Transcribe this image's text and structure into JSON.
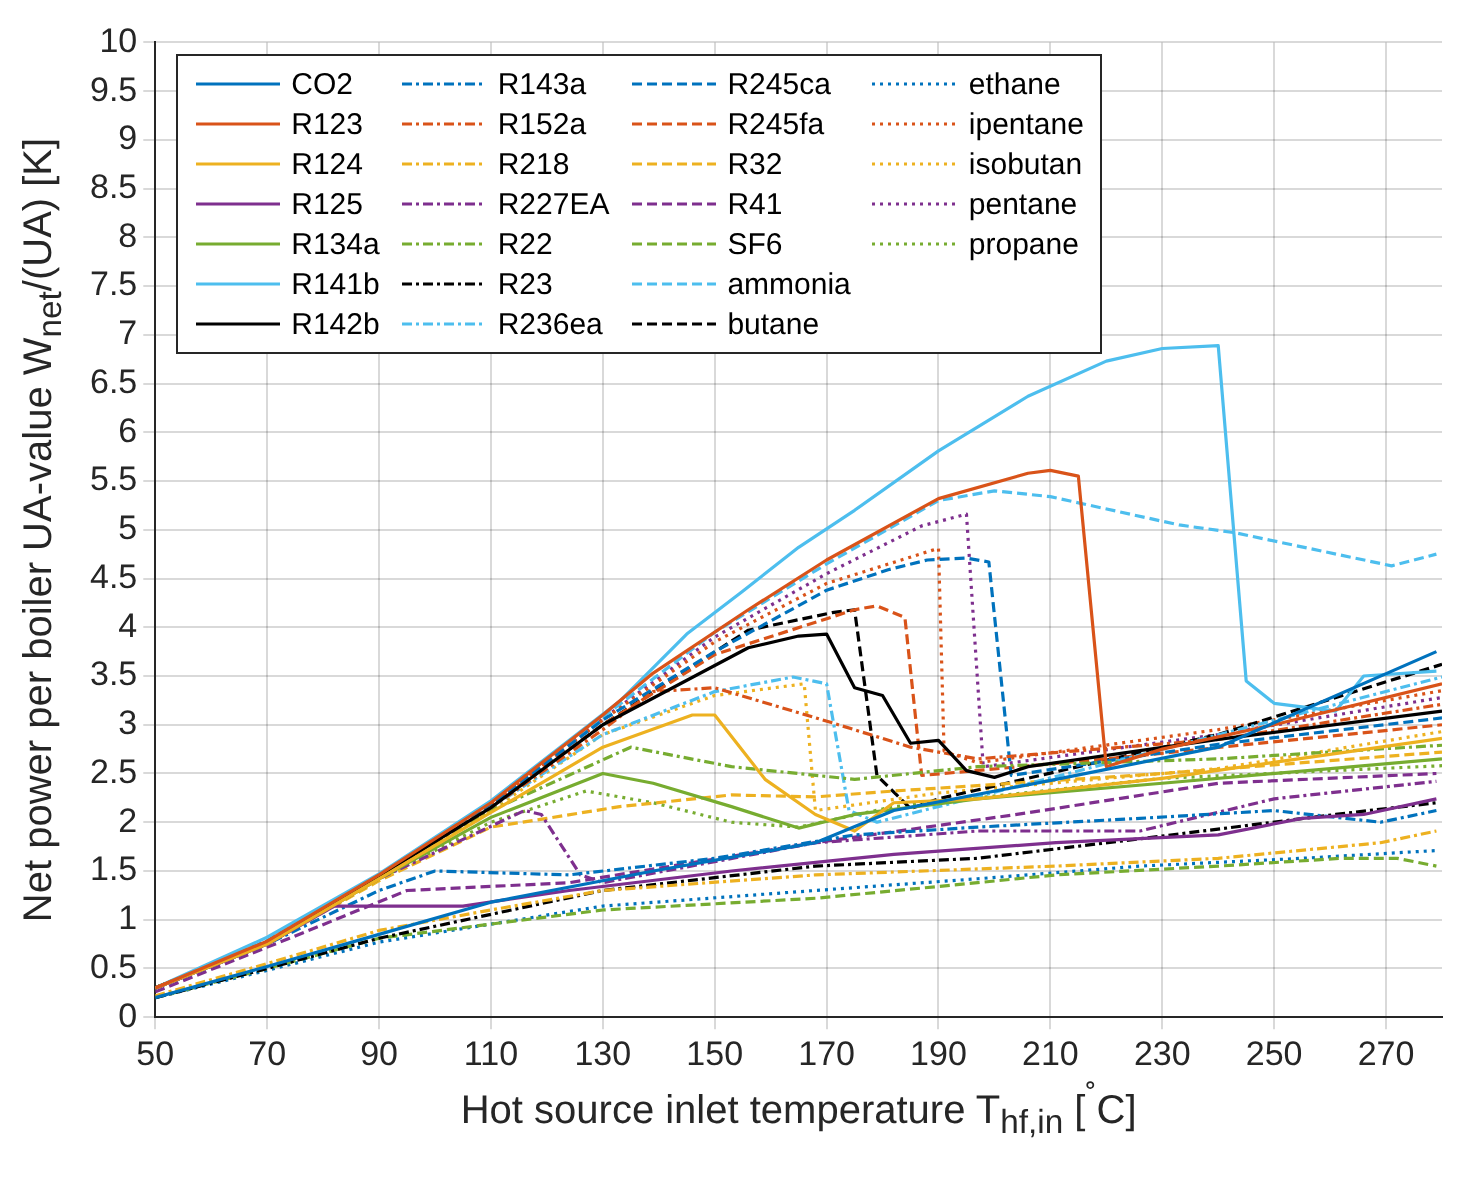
{
  "chart_data": {
    "type": "line",
    "xlabel": "Hot source inlet temperature T$_{hf,in}$ [$^{˚}$C]",
    "ylabel": "Net power per boiler UA-value W$_{net}$/(UA) [K]",
    "xlim": [
      50,
      280
    ],
    "xticks": [
      50,
      70,
      90,
      110,
      130,
      150,
      170,
      190,
      210,
      230,
      250,
      270
    ],
    "ylim": [
      0,
      10
    ],
    "yticks": [
      0,
      0.5,
      1,
      1.5,
      2,
      2.5,
      3,
      3.5,
      4,
      4.5,
      5,
      5.5,
      6,
      6.5,
      7,
      7.5,
      8,
      8.5,
      9,
      9.5,
      10
    ],
    "grid": true,
    "legend": "top left",
    "marker": "none",
    "series": [
      {
        "name": "CO2",
        "color": "#0072bd",
        "line_style": "solid",
        "x": [
          50,
          70,
          90,
          110,
          139,
          168,
          182,
          211,
          240,
          279
        ],
        "values": [
          0.2,
          0.52,
          0.85,
          1.18,
          1.5,
          1.79,
          2.12,
          2.44,
          2.77,
          3.75
        ]
      },
      {
        "name": "R123",
        "color": "#d95319",
        "line_style": "solid",
        "x": [
          50,
          70,
          90,
          110,
          130,
          139,
          156,
          170,
          190,
          206,
          210,
          215,
          220,
          230,
          250,
          280
        ],
        "values": [
          0.3,
          0.78,
          1.46,
          2.2,
          3.1,
          3.53,
          4.18,
          4.69,
          5.32,
          5.58,
          5.61,
          5.55,
          2.57,
          2.75,
          3.0,
          3.42
        ]
      },
      {
        "name": "R124",
        "color": "#edb120",
        "line_style": "solid",
        "x": [
          50,
          70,
          90,
          110,
          130,
          146,
          150,
          159,
          168,
          175,
          182,
          197,
          230,
          280
        ],
        "values": [
          0.3,
          0.75,
          1.42,
          2.1,
          2.77,
          3.1,
          3.1,
          2.44,
          2.08,
          1.91,
          2.2,
          2.24,
          2.45,
          2.86
        ]
      },
      {
        "name": "R125",
        "color": "#7e2f8e",
        "line_style": "solid",
        "x": [
          50,
          70,
          82,
          90,
          105,
          124,
          153,
          182,
          211,
          240,
          255,
          266,
          279
        ],
        "values": [
          0.3,
          0.75,
          1.14,
          1.14,
          1.14,
          1.3,
          1.5,
          1.67,
          1.79,
          1.87,
          2.04,
          2.08,
          2.24
        ]
      },
      {
        "name": "R134a",
        "color": "#77ac30",
        "line_style": "solid",
        "x": [
          50,
          70,
          90,
          110,
          130,
          139,
          153,
          165,
          175,
          197,
          230,
          280
        ],
        "values": [
          0.3,
          0.75,
          1.42,
          2.05,
          2.5,
          2.4,
          2.16,
          1.94,
          2.08,
          2.24,
          2.4,
          2.65
        ]
      },
      {
        "name": "R141b",
        "color": "#4dbeee",
        "line_style": "solid",
        "x": [
          50,
          70,
          90,
          110,
          133,
          145,
          155,
          165,
          175,
          190,
          206,
          220,
          230,
          240,
          245,
          250,
          261,
          266,
          279
        ],
        "values": [
          0.3,
          0.82,
          1.47,
          2.22,
          3.24,
          3.93,
          4.37,
          4.82,
          5.2,
          5.81,
          6.37,
          6.73,
          6.86,
          6.89,
          3.45,
          3.22,
          3.14,
          3.5,
          3.55
        ]
      },
      {
        "name": "R142b",
        "color": "#000000",
        "line_style": "solid",
        "x": [
          50,
          70,
          90,
          110,
          130,
          156,
          165,
          170,
          175,
          180,
          185,
          190,
          195,
          200,
          206,
          240,
          280
        ],
        "values": [
          0.3,
          0.76,
          1.45,
          2.15,
          3.0,
          3.79,
          3.91,
          3.93,
          3.38,
          3.3,
          2.81,
          2.84,
          2.53,
          2.46,
          2.57,
          2.85,
          3.14
        ]
      },
      {
        "name": "R143a",
        "color": "#0072bd",
        "line_style": "dashdot",
        "x": [
          50,
          70,
          90,
          100,
          124,
          150,
          175,
          197,
          226,
          250,
          269,
          279
        ],
        "values": [
          0.3,
          0.75,
          1.3,
          1.5,
          1.46,
          1.63,
          1.87,
          1.95,
          2.04,
          2.12,
          2.0,
          2.12
        ]
      },
      {
        "name": "R152a",
        "color": "#d95319",
        "line_style": "dashdot",
        "x": [
          50,
          70,
          90,
          110,
          130,
          139,
          150,
          171,
          185,
          197,
          240,
          280
        ],
        "values": [
          0.3,
          0.76,
          1.45,
          2.15,
          2.95,
          3.34,
          3.38,
          3.02,
          2.77,
          2.65,
          2.85,
          3.21
        ]
      },
      {
        "name": "R218",
        "color": "#edb120",
        "line_style": "dashdot",
        "x": [
          50,
          70,
          90,
          110,
          130,
          168,
          211,
          240,
          269,
          279
        ],
        "values": [
          0.22,
          0.55,
          0.89,
          1.1,
          1.3,
          1.46,
          1.55,
          1.63,
          1.79,
          1.91
        ]
      },
      {
        "name": "R227EA",
        "color": "#7e2f8e",
        "line_style": "dashdot",
        "x": [
          50,
          70,
          90,
          116,
          119,
          126,
          130,
          168,
          197,
          226,
          250,
          279
        ],
        "values": [
          0.3,
          0.75,
          1.42,
          2.12,
          2.08,
          1.46,
          1.38,
          1.79,
          1.91,
          1.91,
          2.24,
          2.42
        ]
      },
      {
        "name": "R22",
        "color": "#77ac30",
        "line_style": "dashdot",
        "x": [
          50,
          70,
          90,
          110,
          135,
          153,
          175,
          197,
          240,
          280
        ],
        "values": [
          0.3,
          0.76,
          1.45,
          2.12,
          2.77,
          2.57,
          2.44,
          2.57,
          2.65,
          2.79
        ]
      },
      {
        "name": "R23",
        "color": "#000000",
        "line_style": "dashdot",
        "x": [
          50,
          70,
          90,
          130,
          168,
          197,
          226,
          261,
          279
        ],
        "values": [
          0.2,
          0.5,
          0.81,
          1.3,
          1.55,
          1.63,
          1.83,
          2.08,
          2.2
        ]
      },
      {
        "name": "R236ea",
        "color": "#4dbeee",
        "line_style": "dashdot",
        "x": [
          50,
          70,
          90,
          110,
          130,
          150,
          164,
          170,
          174,
          179,
          220,
          280
        ],
        "values": [
          0.3,
          0.76,
          1.45,
          2.15,
          2.9,
          3.34,
          3.49,
          3.42,
          2.12,
          2.0,
          2.6,
          3.49
        ]
      },
      {
        "name": "R245ca",
        "color": "#0072bd",
        "line_style": "dashed",
        "x": [
          50,
          70,
          90,
          110,
          130,
          150,
          170,
          181,
          188,
          195,
          199,
          203,
          240,
          280
        ],
        "values": [
          0.3,
          0.78,
          1.46,
          2.18,
          3.05,
          3.75,
          4.38,
          4.59,
          4.69,
          4.71,
          4.67,
          2.48,
          2.8,
          3.07
        ]
      },
      {
        "name": "R245fa",
        "color": "#d95319",
        "line_style": "dashed",
        "x": [
          50,
          70,
          90,
          110,
          130,
          150,
          175,
          179,
          184,
          187,
          220,
          280
        ],
        "values": [
          0.3,
          0.77,
          1.45,
          2.16,
          3.0,
          3.72,
          4.18,
          4.22,
          4.1,
          2.48,
          2.65,
          3.0
        ]
      },
      {
        "name": "R32",
        "color": "#edb120",
        "line_style": "dashed",
        "x": [
          50,
          70,
          90,
          110,
          120,
          133,
          153,
          168,
          182,
          230,
          280
        ],
        "values": [
          0.3,
          0.75,
          1.4,
          1.95,
          2.04,
          2.16,
          2.28,
          2.26,
          2.32,
          2.5,
          2.72
        ]
      },
      {
        "name": "R41",
        "color": "#7e2f8e",
        "line_style": "dashed",
        "x": [
          50,
          74,
          95,
          124,
          168,
          204,
          240,
          279
        ],
        "values": [
          0.26,
          0.81,
          1.3,
          1.38,
          1.79,
          2.08,
          2.4,
          2.5
        ]
      },
      {
        "name": "SF6",
        "color": "#77ac30",
        "line_style": "dashed",
        "x": [
          50,
          70,
          90,
          130,
          168,
          197,
          211,
          240,
          262,
          272,
          279
        ],
        "values": [
          0.2,
          0.5,
          0.81,
          1.1,
          1.22,
          1.38,
          1.46,
          1.55,
          1.63,
          1.63,
          1.55
        ]
      },
      {
        "name": "ammonia",
        "color": "#4dbeee",
        "line_style": "dashed",
        "x": [
          50,
          70,
          90,
          110,
          130,
          150,
          170,
          190,
          200,
          210,
          233,
          243,
          271,
          279
        ],
        "values": [
          0.3,
          0.78,
          1.46,
          2.2,
          3.08,
          3.95,
          4.65,
          5.3,
          5.4,
          5.34,
          5.05,
          4.97,
          4.63,
          4.75
        ]
      },
      {
        "name": "butane",
        "color": "#000000",
        "line_style": "dashed",
        "x": [
          50,
          70,
          90,
          110,
          130,
          156,
          171,
          175,
          179,
          185,
          190,
          240,
          280
        ],
        "values": [
          0.3,
          0.77,
          1.45,
          2.16,
          3.0,
          3.97,
          4.15,
          4.18,
          2.48,
          2.14,
          2.24,
          2.9,
          3.62
        ]
      },
      {
        "name": "ethane",
        "color": "#0072bd",
        "line_style": "dotted",
        "x": [
          50,
          70,
          90,
          130,
          168,
          197,
          226,
          255,
          279
        ],
        "values": [
          0.2,
          0.48,
          0.77,
          1.14,
          1.3,
          1.42,
          1.55,
          1.63,
          1.71
        ]
      },
      {
        "name": "ipentane",
        "color": "#d95319",
        "line_style": "dotted",
        "x": [
          50,
          70,
          90,
          110,
          130,
          150,
          170,
          190,
          191,
          197,
          240,
          280
        ],
        "values": [
          0.3,
          0.78,
          1.46,
          2.18,
          3.05,
          3.85,
          4.45,
          4.81,
          2.73,
          2.61,
          2.95,
          3.35
        ]
      },
      {
        "name": "isobutan",
        "color": "#edb120",
        "line_style": "dotted",
        "x": [
          50,
          70,
          90,
          110,
          130,
          150,
          166,
          168,
          190,
          240,
          280
        ],
        "values": [
          0.3,
          0.76,
          1.44,
          2.12,
          2.9,
          3.3,
          3.42,
          2.12,
          2.3,
          2.55,
          2.93
        ]
      },
      {
        "name": "pentane",
        "color": "#7e2f8e",
        "line_style": "dotted",
        "x": [
          50,
          70,
          90,
          110,
          130,
          150,
          170,
          187,
          195,
          198,
          240,
          280
        ],
        "values": [
          0.3,
          0.78,
          1.46,
          2.19,
          3.06,
          3.9,
          4.55,
          5.04,
          5.16,
          2.57,
          2.9,
          3.28
        ]
      },
      {
        "name": "propane",
        "color": "#77ac30",
        "line_style": "dotted",
        "x": [
          50,
          70,
          90,
          110,
          127,
          139,
          153,
          165,
          182,
          230,
          280
        ],
        "values": [
          0.3,
          0.75,
          1.42,
          2.0,
          2.32,
          2.2,
          2.0,
          1.95,
          2.16,
          2.45,
          2.58
        ]
      }
    ]
  }
}
